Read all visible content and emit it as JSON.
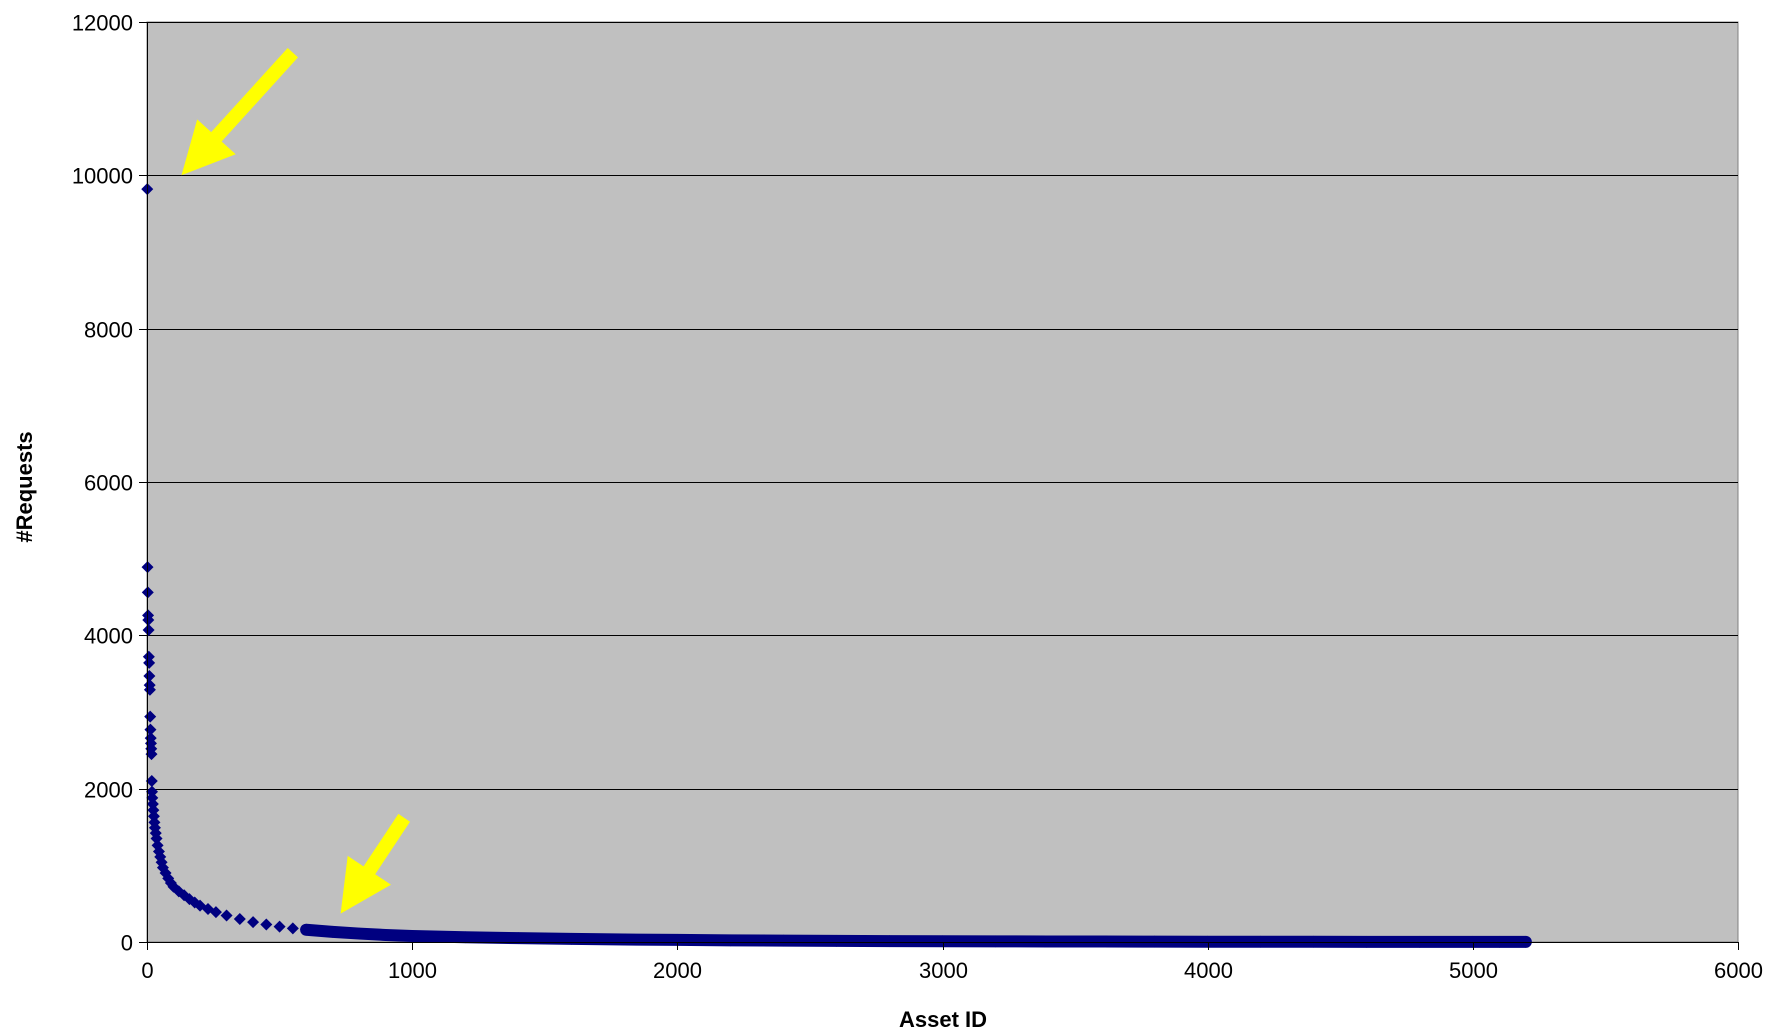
{
  "chart_data": {
    "type": "scatter",
    "title": "",
    "xlabel": "Asset ID",
    "ylabel": "#Requests",
    "xlim": [
      0,
      6000
    ],
    "ylim": [
      0,
      12000
    ],
    "x_ticks": [
      0,
      1000,
      2000,
      3000,
      4000,
      5000,
      6000
    ],
    "y_ticks": [
      0,
      2000,
      4000,
      6000,
      8000,
      10000,
      12000
    ],
    "grid": "horizontal",
    "legend": "none",
    "plot_background": "#c0c0c0",
    "marker": "diamond",
    "marker_color": "#000080",
    "annotation_color": "#ffff00",
    "series": [
      {
        "points": [
          [
            1,
            9820
          ],
          [
            2,
            4890
          ],
          [
            3,
            4560
          ],
          [
            4,
            4260
          ],
          [
            5,
            4200
          ],
          [
            6,
            4070
          ],
          [
            7,
            3720
          ],
          [
            8,
            3640
          ],
          [
            9,
            3470
          ],
          [
            10,
            3350
          ],
          [
            11,
            3290
          ],
          [
            12,
            2940
          ],
          [
            13,
            2770
          ],
          [
            14,
            2660
          ],
          [
            15,
            2590
          ],
          [
            16,
            2520
          ],
          [
            17,
            2450
          ],
          [
            18,
            2100
          ],
          [
            19,
            1960
          ],
          [
            20,
            1880
          ],
          [
            22,
            1800
          ],
          [
            24,
            1720
          ],
          [
            26,
            1640
          ],
          [
            28,
            1560
          ],
          [
            30,
            1490
          ],
          [
            33,
            1420
          ],
          [
            36,
            1350
          ],
          [
            40,
            1260
          ],
          [
            45,
            1180
          ],
          [
            50,
            1110
          ],
          [
            55,
            1040
          ],
          [
            60,
            970
          ],
          [
            70,
            900
          ],
          [
            80,
            830
          ],
          [
            90,
            770
          ],
          [
            100,
            720
          ],
          [
            120,
            660
          ],
          [
            140,
            610
          ],
          [
            160,
            560
          ],
          [
            180,
            515
          ],
          [
            200,
            475
          ],
          [
            230,
            430
          ],
          [
            260,
            390
          ],
          [
            300,
            345
          ],
          [
            350,
            300
          ],
          [
            400,
            260
          ],
          [
            450,
            228
          ],
          [
            500,
            200
          ],
          [
            550,
            178
          ],
          [
            600,
            160
          ],
          [
            700,
            132
          ],
          [
            800,
            110
          ],
          [
            900,
            92
          ],
          [
            1000,
            78
          ],
          [
            1200,
            62
          ],
          [
            1400,
            50
          ],
          [
            1600,
            40
          ],
          [
            1800,
            33
          ],
          [
            2000,
            27
          ],
          [
            2200,
            22
          ],
          [
            2400,
            18
          ],
          [
            2600,
            15
          ],
          [
            2800,
            12
          ],
          [
            3000,
            10
          ],
          [
            3200,
            8
          ],
          [
            3400,
            7
          ],
          [
            3600,
            6
          ],
          [
            3800,
            5
          ],
          [
            4000,
            4
          ],
          [
            4200,
            3
          ],
          [
            4400,
            3
          ],
          [
            4600,
            2
          ],
          [
            4800,
            2
          ],
          [
            5000,
            1
          ],
          [
            5100,
            1
          ],
          [
            5200,
            1
          ]
        ]
      }
    ],
    "annotations": [
      {
        "type": "arrow",
        "from": [
          550,
          11600
        ],
        "to": [
          130,
          10000
        ]
      },
      {
        "type": "arrow",
        "from": [
          970,
          1620
        ],
        "to": [
          730,
          370
        ]
      }
    ]
  }
}
